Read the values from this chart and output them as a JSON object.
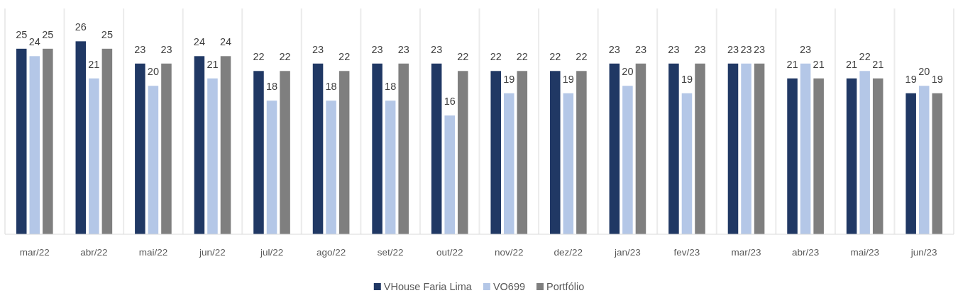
{
  "chart_data": {
    "type": "bar",
    "categories": [
      "mar/22",
      "abr/22",
      "mai/22",
      "jun/22",
      "jul/22",
      "ago/22",
      "set/22",
      "out/22",
      "nov/22",
      "dez/22",
      "jan/23",
      "fev/23",
      "mar/23",
      "abr/23",
      "mai/23",
      "jun/23"
    ],
    "series": [
      {
        "name": "VHouse Faria Lima",
        "color": "#203864",
        "values": [
          25,
          26,
          23,
          24,
          22,
          23,
          23,
          23,
          22,
          22,
          23,
          23,
          23,
          21,
          21,
          19
        ]
      },
      {
        "name": "VO699",
        "color": "#b4c7e7",
        "values": [
          24,
          21,
          20,
          21,
          18,
          18,
          18,
          16,
          19,
          19,
          20,
          19,
          23,
          23,
          22,
          20
        ]
      },
      {
        "name": "Portfólio",
        "color": "#7f7f7f",
        "values": [
          25,
          25,
          23,
          24,
          22,
          22,
          23,
          22,
          22,
          22,
          23,
          23,
          23,
          21,
          21,
          19
        ]
      }
    ],
    "data_labels": true,
    "grid": "x",
    "legend": "bottom"
  }
}
